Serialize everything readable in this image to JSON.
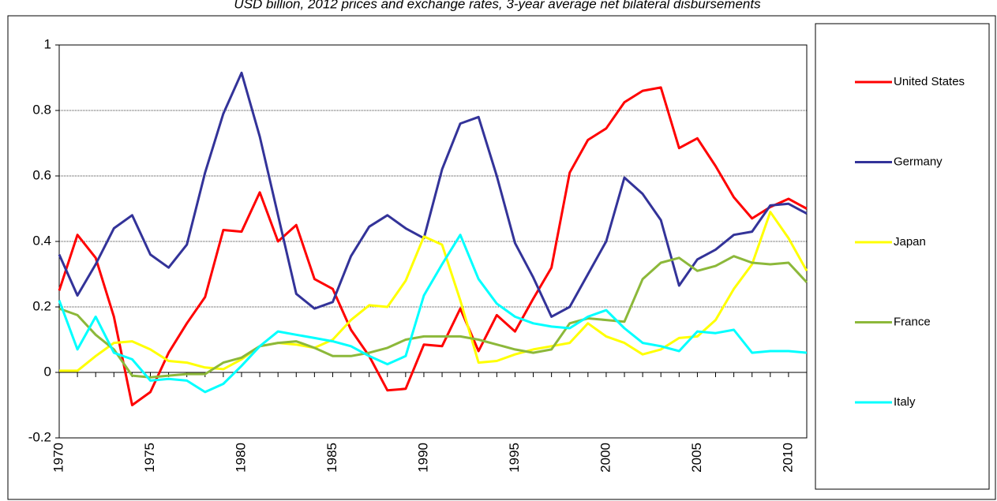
{
  "chart_data": {
    "type": "line",
    "title": "USD billion, 2012 prices and exchange rates, 3-year average net bilateral disbursements",
    "x": [
      1970,
      1971,
      1972,
      1973,
      1974,
      1975,
      1976,
      1977,
      1978,
      1979,
      1980,
      1981,
      1982,
      1983,
      1984,
      1985,
      1986,
      1987,
      1988,
      1989,
      1990,
      1991,
      1992,
      1993,
      1994,
      1995,
      1996,
      1997,
      1998,
      1999,
      2000,
      2001,
      2002,
      2003,
      2004,
      2005,
      2006,
      2007,
      2008,
      2009,
      2010,
      2011
    ],
    "xlim": [
      1970,
      2011
    ],
    "xticks": [
      1970,
      1975,
      1980,
      1985,
      1990,
      1995,
      2000,
      2005,
      2010
    ],
    "ylim": [
      -0.2,
      1
    ],
    "yticks": [
      -0.2,
      0,
      0.2,
      0.4,
      0.6,
      0.8,
      1
    ],
    "grid": true,
    "legend": "right",
    "series": [
      {
        "name": "United States",
        "color": "#ff0000",
        "values": [
          0.25,
          0.42,
          0.35,
          0.17,
          -0.1,
          -0.06,
          0.06,
          0.15,
          0.23,
          0.435,
          0.43,
          0.55,
          0.4,
          0.45,
          0.285,
          0.255,
          0.13,
          0.05,
          -0.055,
          -0.05,
          0.085,
          0.08,
          0.195,
          0.065,
          0.175,
          0.125,
          0.225,
          0.32,
          0.61,
          0.71,
          0.745,
          0.825,
          0.86,
          0.87,
          0.685,
          0.715,
          0.63,
          0.535,
          0.47,
          0.505,
          0.53,
          0.5
        ]
      },
      {
        "name": "Germany",
        "color": "#333399",
        "values": [
          0.36,
          0.235,
          0.33,
          0.44,
          0.48,
          0.36,
          0.32,
          0.39,
          0.61,
          0.79,
          0.915,
          0.72,
          0.48,
          0.24,
          0.195,
          0.215,
          0.355,
          0.445,
          0.48,
          0.44,
          0.41,
          0.62,
          0.76,
          0.78,
          0.6,
          0.395,
          0.29,
          0.17,
          0.2,
          0.3,
          0.4,
          0.595,
          0.545,
          0.465,
          0.265,
          0.345,
          0.375,
          0.42,
          0.43,
          0.51,
          0.515,
          0.485
        ]
      },
      {
        "name": "Japan",
        "color": "#ffff00",
        "values": [
          0.005,
          0.005,
          0.05,
          0.09,
          0.095,
          0.07,
          0.035,
          0.03,
          0.015,
          0.01,
          0.04,
          0.08,
          0.09,
          0.085,
          0.075,
          0.1,
          0.16,
          0.205,
          0.2,
          0.28,
          0.415,
          0.39,
          0.22,
          0.03,
          0.035,
          0.055,
          0.07,
          0.08,
          0.09,
          0.15,
          0.11,
          0.09,
          0.055,
          0.07,
          0.105,
          0.11,
          0.16,
          0.255,
          0.33,
          0.49,
          0.41,
          0.31
        ]
      },
      {
        "name": "France",
        "color": "#8cb83a",
        "values": [
          0.195,
          0.175,
          0.115,
          0.07,
          -0.01,
          -0.015,
          -0.01,
          -0.005,
          -0.005,
          0.03,
          0.045,
          0.08,
          0.09,
          0.095,
          0.075,
          0.05,
          0.05,
          0.06,
          0.075,
          0.1,
          0.11,
          0.11,
          0.11,
          0.1,
          0.085,
          0.07,
          0.06,
          0.07,
          0.15,
          0.165,
          0.16,
          0.155,
          0.285,
          0.335,
          0.35,
          0.31,
          0.325,
          0.355,
          0.335,
          0.33,
          0.335,
          0.275
        ]
      },
      {
        "name": "Italy",
        "color": "#00ffff",
        "values": [
          0.22,
          0.07,
          0.17,
          0.06,
          0.04,
          -0.025,
          -0.02,
          -0.025,
          -0.06,
          -0.035,
          0.02,
          0.08,
          0.125,
          0.115,
          0.105,
          0.095,
          0.08,
          0.05,
          0.025,
          0.05,
          0.235,
          0.33,
          0.42,
          0.285,
          0.21,
          0.17,
          0.15,
          0.14,
          0.135,
          0.17,
          0.19,
          0.135,
          0.09,
          0.08,
          0.065,
          0.125,
          0.12,
          0.13,
          0.06,
          0.065,
          0.065,
          0.06
        ]
      }
    ]
  }
}
